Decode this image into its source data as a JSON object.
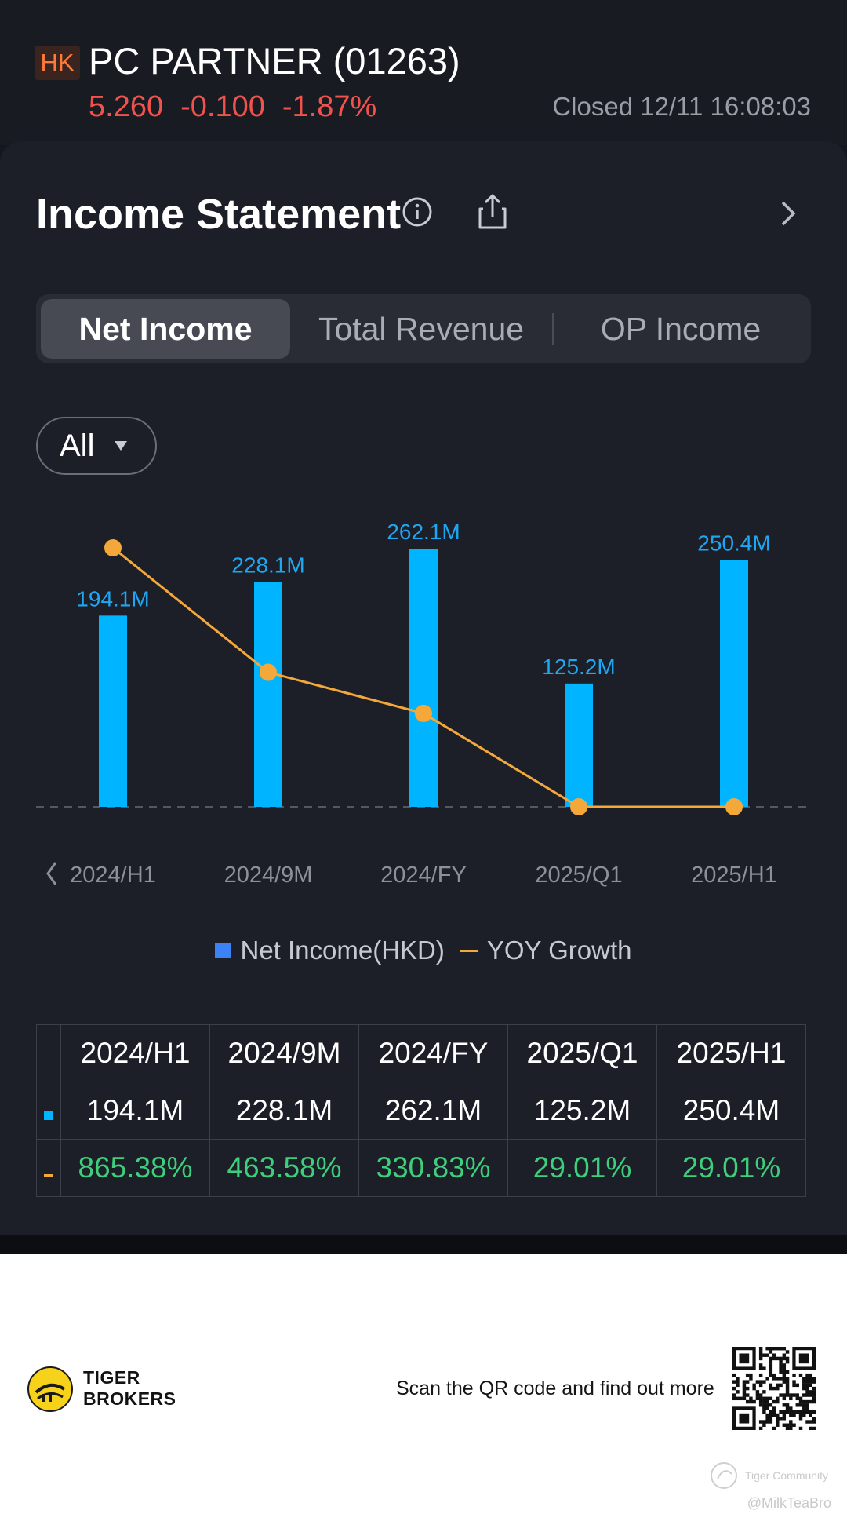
{
  "header": {
    "market_badge": "HK",
    "stock_name": "PC PARTNER (01263)",
    "price": "5.260",
    "change": "-0.100",
    "change_pct": "-1.87%",
    "status": "Closed 12/11 16:08:03",
    "colors": {
      "down": "#f2524c",
      "market_badge": "#ff7a38"
    }
  },
  "card": {
    "title": "Income Statement",
    "icons": [
      "info-icon",
      "share-icon",
      "chevron-right-icon"
    ],
    "tabs": [
      {
        "label": "Net Income",
        "active": true
      },
      {
        "label": "Total Revenue",
        "active": false
      },
      {
        "label": "OP Income",
        "active": false
      }
    ],
    "period_filter": {
      "label": "All"
    }
  },
  "chart_data": {
    "type": "bar",
    "categories": [
      "2024/H1",
      "2024/9M",
      "2024/FY",
      "2025/Q1",
      "2025/H1"
    ],
    "series": [
      {
        "name": "Net Income(HKD)",
        "type": "bar",
        "unit": "M",
        "values": [
          194.1,
          228.1,
          262.1,
          125.2,
          250.4
        ],
        "labels": [
          "194.1M",
          "228.1M",
          "262.1M",
          "125.2M",
          "250.4M"
        ],
        "color": "#00b4ff"
      },
      {
        "name": "YOY Growth",
        "type": "line",
        "unit": "%",
        "values": [
          865.38,
          463.58,
          330.83,
          29.01,
          29.01
        ],
        "color": "#f5a83a"
      }
    ],
    "legend": [
      "Net Income(HKD)",
      "YOY Growth"
    ],
    "legend_position": "bottom",
    "grid": false
  },
  "table": {
    "headers": [
      "2024/H1",
      "2024/9M",
      "2024/FY",
      "2025/Q1",
      "2025/H1"
    ],
    "net_income": [
      "194.1M",
      "228.1M",
      "262.1M",
      "125.2M",
      "250.4M"
    ],
    "yoy_growth": [
      "865.38%",
      "463.58%",
      "330.83%",
      "29.01%",
      "29.01%"
    ],
    "colors": {
      "growth": "#3ecf7c"
    }
  },
  "footer": {
    "brand_line1": "TIGER",
    "brand_line2": "BROKERS",
    "scan_text": "Scan the QR code and find out more",
    "community": "Tiger Community",
    "watermark": "@MilkTeaBro"
  }
}
